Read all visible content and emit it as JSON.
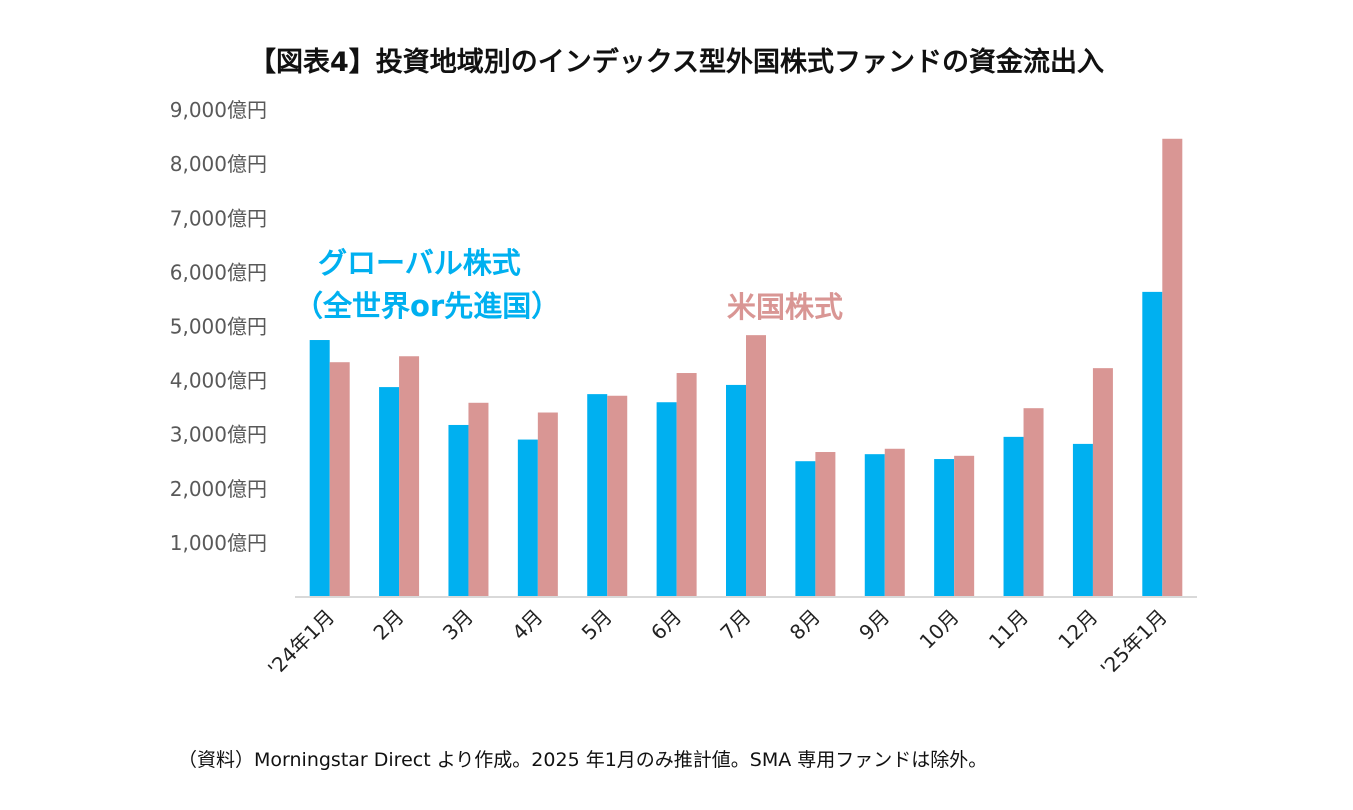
{
  "title": "【図表4】投資地域別のインデックス型外国株式ファンドの資金流出入",
  "footer": "（資料）Morningstar Direct より作成。2025 年1月のみ推計値。SMA 専用ファンドは除外。",
  "chart_data": {
    "type": "bar",
    "title": "【図表4】投資地域別のインデックス型外国株式ファンドの資金流出入",
    "xlabel": "",
    "ylabel": "",
    "ylim": [
      0,
      9000
    ],
    "yticks": [
      1000,
      2000,
      3000,
      4000,
      5000,
      6000,
      7000,
      8000,
      9000
    ],
    "ytick_labels": [
      "1,000億円",
      "2,000億円",
      "3,000億円",
      "4,000億円",
      "5,000億円",
      "6,000億円",
      "7,000億円",
      "8,000億円",
      "9,000億円"
    ],
    "grid": false,
    "categories": [
      "'24年1月",
      "2月",
      "3月",
      "4月",
      "5月",
      "6月",
      "7月",
      "8月",
      "9月",
      "10月",
      "11月",
      "12月",
      "'25年1月"
    ],
    "series": [
      {
        "name": "グローバル株式（全世界or先進国）",
        "color": "#00b0f0",
        "values": [
          4750,
          3880,
          3180,
          2910,
          3750,
          3600,
          3920,
          2510,
          2640,
          2550,
          2960,
          2830,
          5640
        ]
      },
      {
        "name": "米国株式",
        "color": "#d99694",
        "values": [
          4340,
          4450,
          3590,
          3410,
          3720,
          4140,
          4840,
          2680,
          2740,
          2610,
          3490,
          4230,
          8470
        ]
      }
    ],
    "annotations": [
      {
        "line1": "グローバル株式",
        "line2": "（全世界or先進国）",
        "color": "#00b0f0"
      },
      {
        "line1": "米国株式",
        "color": "#d99694"
      }
    ]
  }
}
